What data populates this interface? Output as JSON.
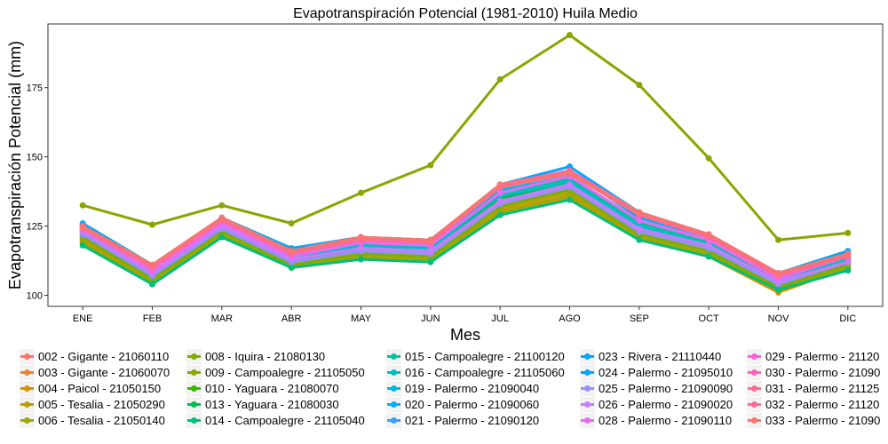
{
  "chart_data": {
    "type": "line",
    "title": "Evapotranspiración Potencial (1981-2010)  Huila Medio",
    "xlabel": "Mes",
    "ylabel": "Evapotranspiración Potencial  (mm)",
    "categories": [
      "ENE",
      "FEB",
      "MAR",
      "ABR",
      "MAY",
      "JUN",
      "JUL",
      "AGO",
      "SEP",
      "OCT",
      "NOV",
      "DIC"
    ],
    "ylim": [
      96,
      198
    ],
    "yticks": [
      100,
      125,
      150,
      175
    ],
    "grid": false,
    "legend_position": "bottom",
    "series": [
      {
        "name": "002 - Gigante - 21060110",
        "color": "#F8766D",
        "values": [
          120,
          106,
          123,
          111,
          115,
          114,
          132,
          139,
          122,
          116,
          103,
          111
        ]
      },
      {
        "name": "003 - Gigante - 21060070",
        "color": "#EA8331",
        "values": [
          121,
          107,
          124,
          112,
          116,
          115,
          133,
          140,
          123,
          117,
          104,
          112
        ]
      },
      {
        "name": "004 - Paicol - 21050150",
        "color": "#D89000",
        "values": [
          119,
          104,
          121,
          110,
          113,
          112,
          129,
          135,
          120,
          114,
          101,
          110
        ]
      },
      {
        "name": "005 - Tesalia - 21050290",
        "color": "#C09B00",
        "values": [
          120,
          105,
          122,
          111,
          114,
          113,
          131,
          137,
          121,
          115,
          102,
          111
        ]
      },
      {
        "name": "006 - Tesalia - 21050140",
        "color": "#A3A500",
        "values": [
          119,
          105,
          122,
          110,
          114,
          113,
          130,
          136,
          121,
          115,
          102,
          110
        ]
      },
      {
        "name": "008 - Iquira - 21080130",
        "color": "#7CAE00",
        "values": [
          121,
          106,
          123,
          111,
          115,
          114,
          132,
          138,
          122,
          116,
          103,
          111
        ]
      },
      {
        "name": "009 - Campoalegre - 21105050",
        "color": "#8DA400",
        "values": [
          132.5,
          125.5,
          132.5,
          126,
          137,
          147,
          178,
          194,
          176,
          149.5,
          120,
          122.5
        ]
      },
      {
        "name": "010 - Yaguara - 21080070",
        "color": "#39B600",
        "values": [
          123,
          108,
          125,
          113,
          118,
          117,
          136,
          141,
          125,
          118,
          105,
          113
        ]
      },
      {
        "name": "013 - Yaguara - 21080030",
        "color": "#00BB4E",
        "values": [
          122,
          107,
          124,
          112,
          117,
          116,
          135,
          140,
          124,
          117,
          104,
          112
        ]
      },
      {
        "name": "014 - Campoalegre - 21105040",
        "color": "#00BF7D",
        "values": [
          118,
          104,
          121,
          110,
          113,
          112,
          129,
          134.5,
          120,
          114,
          102,
          109
        ]
      },
      {
        "name": "015 - Campoalegre - 21100120",
        "color": "#00C1A3",
        "values": [
          124,
          109,
          126,
          114,
          119,
          118,
          137,
          142,
          126,
          119,
          106,
          113
        ]
      },
      {
        "name": "016 - Campoalegre - 21105060",
        "color": "#00BFC4",
        "values": [
          123,
          108,
          125,
          113,
          118,
          117,
          136,
          141,
          125,
          118,
          105,
          113
        ]
      },
      {
        "name": "019 - Palermo - 21090040",
        "color": "#00BAE0",
        "values": [
          124,
          109,
          126,
          115,
          119,
          118,
          138,
          143,
          127,
          120,
          106,
          114
        ]
      },
      {
        "name": "020 - Palermo - 21090060",
        "color": "#00B0F6",
        "values": [
          125,
          110,
          127,
          116,
          120,
          119,
          139,
          145,
          128,
          121,
          107,
          115
        ]
      },
      {
        "name": "021 - Palermo - 21090120",
        "color": "#35A2FF",
        "values": [
          125,
          110,
          128,
          116,
          120,
          119,
          139,
          145,
          129,
          121,
          107,
          115
        ]
      },
      {
        "name": "023 - Rivera - 21110440",
        "color": "#00A9FF",
        "values": [
          126,
          111,
          128,
          117,
          121,
          120,
          140,
          146.5,
          130,
          122,
          108,
          116
        ]
      },
      {
        "name": "024 - Palermo - 21095010",
        "color": "#00A5FF",
        "values": [
          125,
          110,
          127,
          116,
          120,
          119,
          139,
          145,
          129,
          121,
          107,
          115
        ]
      },
      {
        "name": "025 - Palermo - 21090090",
        "color": "#9590FF",
        "values": [
          122,
          107,
          124,
          112,
          116,
          115,
          133,
          139,
          123,
          117,
          104,
          112
        ]
      },
      {
        "name": "026 - Palermo - 21090020",
        "color": "#C77CFF",
        "values": [
          123,
          108,
          125,
          113,
          117,
          116,
          134,
          140,
          124,
          118,
          105,
          112
        ]
      },
      {
        "name": "028 - Palermo - 21090110",
        "color": "#E76BF3",
        "values": [
          124,
          109,
          126,
          114,
          119,
          118,
          137,
          143,
          127,
          120,
          106,
          114
        ]
      },
      {
        "name": "029 - Palermo - 21120",
        "color": "#FA62DB",
        "values": [
          125,
          110,
          127,
          115,
          120,
          119,
          139,
          144,
          129,
          121,
          107,
          114
        ]
      },
      {
        "name": "030 - Palermo - 21090",
        "color": "#FF62BC",
        "values": [
          125,
          111,
          128,
          116,
          121,
          120,
          140,
          145,
          130,
          122,
          108,
          115
        ]
      },
      {
        "name": "031 - Palermo - 21125",
        "color": "#FF6C91",
        "values": [
          124,
          110,
          127,
          115,
          120,
          119,
          139,
          144,
          129,
          121,
          107,
          114
        ]
      },
      {
        "name": "032 - Palermo - 21120",
        "color": "#FF6A98",
        "values": [
          125,
          110,
          128,
          116,
          121,
          120,
          140,
          145,
          130,
          122,
          108,
          115
        ]
      },
      {
        "name": "033 - Palermo - 21090",
        "color": "#F8766D",
        "values": [
          125,
          111,
          128,
          116,
          121,
          120,
          140,
          144,
          130,
          122,
          108,
          115
        ]
      }
    ]
  }
}
